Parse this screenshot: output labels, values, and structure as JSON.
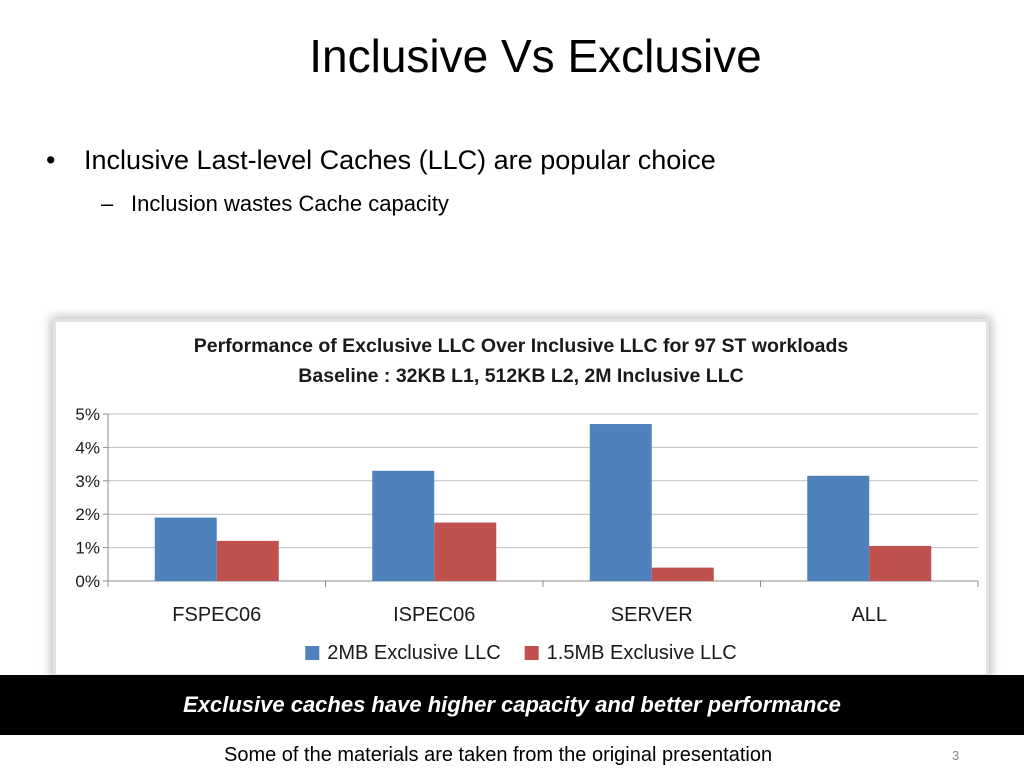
{
  "slide": {
    "title": "Inclusive Vs Exclusive",
    "bullet_symbol": "•",
    "bullet": "Inclusive Last-level Caches (LLC) are popular choice",
    "sub_bullet_symbol": "–",
    "sub_bullet": "Inclusion wastes Cache capacity",
    "banner": "Exclusive caches have higher capacity and better performance",
    "footer": "Some of the materials are taken from the original presentation",
    "slide_number": "3"
  },
  "chart_data": {
    "type": "bar",
    "title": "Performance of Exclusive LLC Over Inclusive LLC for 97 ST workloads",
    "subtitle": "Baseline : 32KB L1, 512KB L2, 2M Inclusive LLC",
    "categories": [
      "FSPEC06",
      "ISPEC06",
      "SERVER",
      "ALL"
    ],
    "series": [
      {
        "name": "2MB Exclusive LLC",
        "color": "#4f81bd",
        "values": [
          1.9,
          3.3,
          4.7,
          3.15
        ]
      },
      {
        "name": "1.5MB Exclusive LLC",
        "color": "#c0504d",
        "values": [
          1.2,
          1.75,
          0.4,
          1.05
        ]
      }
    ],
    "ylim": [
      0,
      5
    ],
    "yticks": [
      0,
      1,
      2,
      3,
      4,
      5
    ],
    "ytick_labels": [
      "0%",
      "1%",
      "2%",
      "3%",
      "4%",
      "5%"
    ],
    "grid": true,
    "legend": "bottom"
  }
}
